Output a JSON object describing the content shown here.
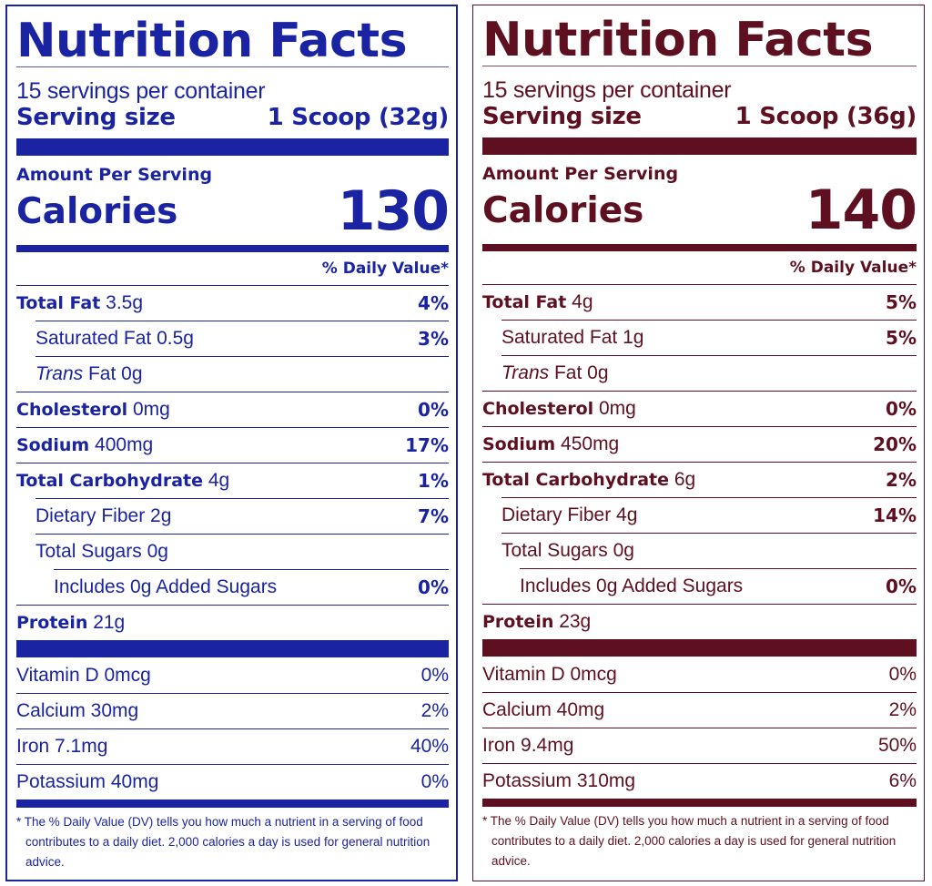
{
  "panels": [
    {
      "title": "Nutrition Facts",
      "servings": "15 servings per container",
      "serving_size_label": "Serving size",
      "serving_size_value": "1 Scoop (32g)",
      "amount_per_serving": "Amount Per Serving",
      "calories_label": "Calories",
      "calories_value": "130",
      "daily_value_header": "% Daily Value*",
      "total_fat": {
        "label": "Total Fat",
        "amount": "3.5g",
        "dv": "4%"
      },
      "saturated_fat": {
        "label": "Saturated Fat 0.5g",
        "dv": "3%"
      },
      "trans_fat": {
        "italic": "Trans",
        "rest": "Fat 0g"
      },
      "cholesterol": {
        "label": "Cholesterol",
        "amount": "0mg",
        "dv": "0%"
      },
      "sodium": {
        "label": "Sodium",
        "amount": "400mg",
        "dv": "17%"
      },
      "total_carb": {
        "label": "Total Carbohydrate",
        "amount": "4g",
        "dv": "1%"
      },
      "dietary_fiber": {
        "label": "Dietary Fiber 2g",
        "dv": "7%"
      },
      "total_sugars": {
        "label": "Total Sugars 0g"
      },
      "added_sugars": {
        "label": "Includes 0g Added Sugars",
        "dv": "0%"
      },
      "protein": {
        "label": "Protein",
        "amount": "21g"
      },
      "vitamins": [
        {
          "label": "Vitamin D 0mcg",
          "dv": "0%"
        },
        {
          "label": "Calcium 30mg",
          "dv": "2%"
        },
        {
          "label": "Iron 7.1mg",
          "dv": "40%"
        },
        {
          "label": "Potassium 40mg",
          "dv": "0%"
        }
      ],
      "footnote": "* The % Daily Value (DV) tells you how much a nutrient in a serving of food contributes to a daily diet. 2,000 calories a day is used for general nutrition advice."
    },
    {
      "title": "Nutrition Facts",
      "servings": "15 servings per container",
      "serving_size_label": "Serving size",
      "serving_size_value": "1 Scoop (36g)",
      "amount_per_serving": "Amount Per Serving",
      "calories_label": "Calories",
      "calories_value": "140",
      "daily_value_header": "% Daily Value*",
      "total_fat": {
        "label": "Total Fat",
        "amount": "4g",
        "dv": "5%"
      },
      "saturated_fat": {
        "label": "Saturated Fat 1g",
        "dv": "5%"
      },
      "trans_fat": {
        "italic": "Trans",
        "rest": "Fat 0g"
      },
      "cholesterol": {
        "label": "Cholesterol",
        "amount": "0mg",
        "dv": "0%"
      },
      "sodium": {
        "label": "Sodium",
        "amount": "450mg",
        "dv": "20%"
      },
      "total_carb": {
        "label": "Total Carbohydrate",
        "amount": "6g",
        "dv": "2%"
      },
      "dietary_fiber": {
        "label": "Dietary Fiber 4g",
        "dv": "14%"
      },
      "total_sugars": {
        "label": "Total Sugars 0g"
      },
      "added_sugars": {
        "label": "Includes 0g Added Sugars",
        "dv": "0%"
      },
      "protein": {
        "label": "Protein",
        "amount": "23g"
      },
      "vitamins": [
        {
          "label": "Vitamin D 0mcg",
          "dv": "0%"
        },
        {
          "label": "Calcium 40mg",
          "dv": "2%"
        },
        {
          "label": "Iron 9.4mg",
          "dv": "50%"
        },
        {
          "label": "Potassium 310mg",
          "dv": "6%"
        }
      ],
      "footnote": "* The % Daily Value (DV) tells you how much a nutrient in a serving of food contributes to a daily diet. 2,000 calories a day is used for general nutrition advice."
    }
  ],
  "colors": {
    "blue_label": "#1a24a3",
    "maroon_label": "#5e1020"
  }
}
